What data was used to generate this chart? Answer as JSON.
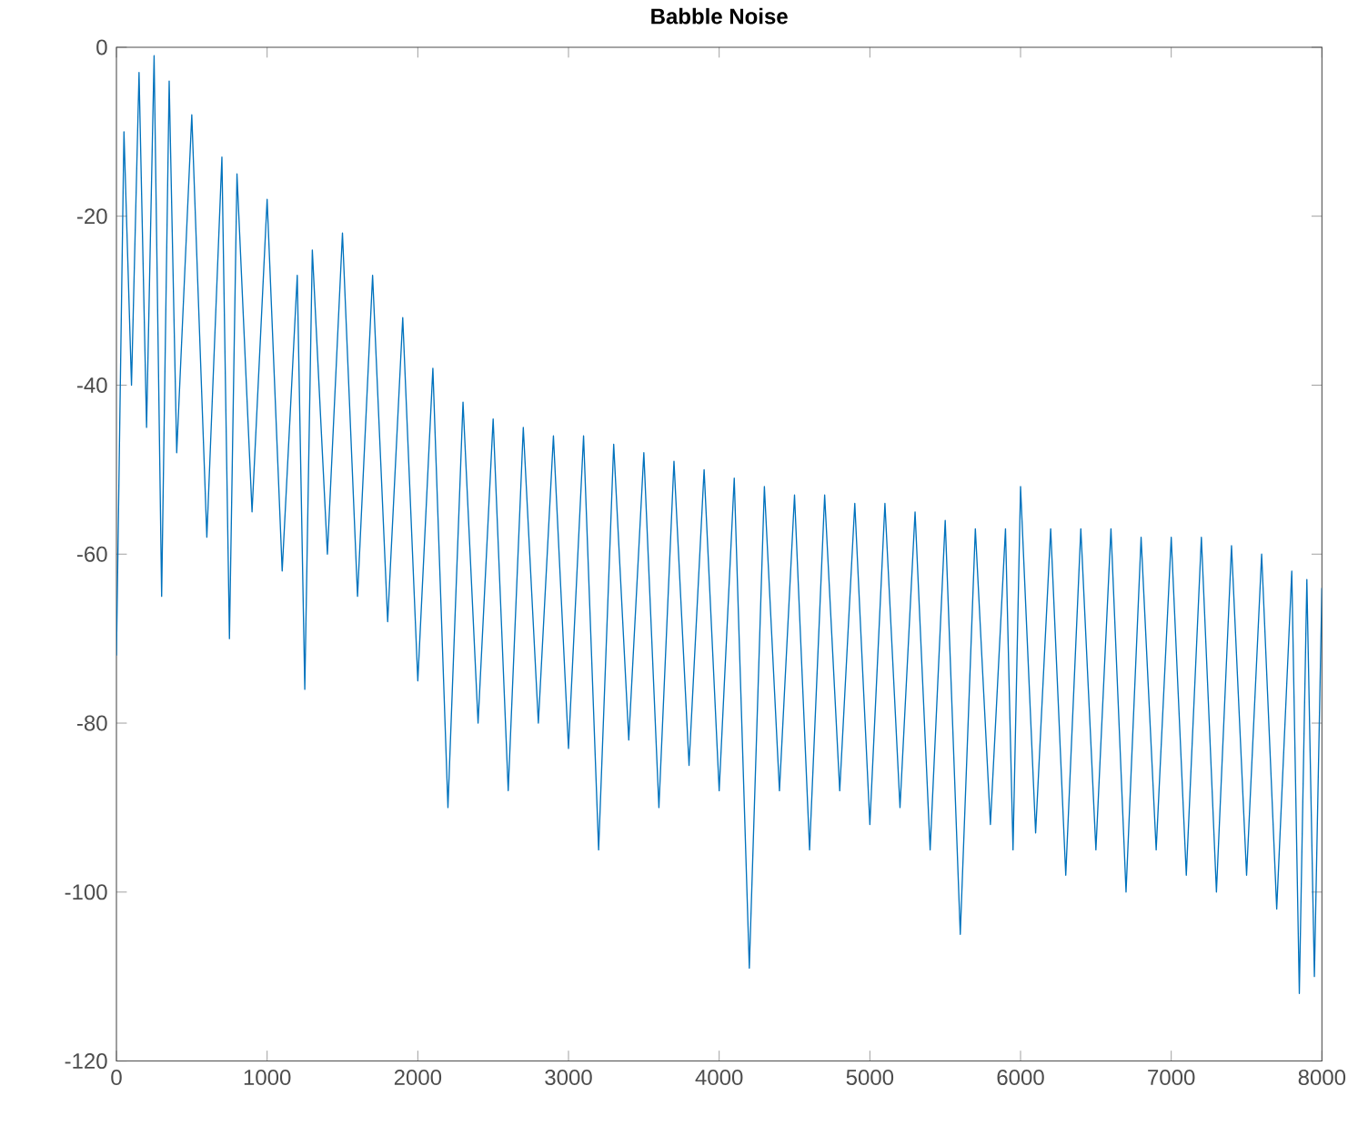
{
  "chart_data": {
    "type": "line",
    "title": "Babble Noise",
    "xlim": [
      0,
      8000
    ],
    "ylim": [
      -120,
      0
    ],
    "xticks": [
      0,
      1000,
      2000,
      3000,
      4000,
      5000,
      6000,
      7000,
      8000
    ],
    "yticks": [
      -120,
      -100,
      -80,
      -60,
      -40,
      -20,
      0
    ],
    "grid": false,
    "marker": "none",
    "line_style": "solid",
    "series": [
      {
        "color": "#0072bd",
        "x": [
          0,
          50,
          100,
          150,
          200,
          250,
          300,
          350,
          400,
          500,
          600,
          700,
          750,
          800,
          900,
          1000,
          1100,
          1200,
          1250,
          1300,
          1400,
          1500,
          1600,
          1700,
          1800,
          1900,
          2000,
          2100,
          2200,
          2300,
          2400,
          2500,
          2600,
          2700,
          2800,
          2900,
          3000,
          3100,
          3200,
          3300,
          3400,
          3500,
          3600,
          3700,
          3800,
          3900,
          4000,
          4100,
          4200,
          4300,
          4400,
          4500,
          4600,
          4700,
          4800,
          4900,
          5000,
          5100,
          5200,
          5300,
          5400,
          5500,
          5600,
          5700,
          5800,
          5900,
          5950,
          6000,
          6100,
          6200,
          6300,
          6400,
          6500,
          6600,
          6700,
          6800,
          6900,
          7000,
          7100,
          7200,
          7300,
          7400,
          7500,
          7600,
          7700,
          7800,
          7850,
          7900,
          7950,
          8000
        ],
        "values": [
          -72,
          -10,
          -40,
          -3,
          -45,
          -1,
          -65,
          -4,
          -48,
          -8,
          -58,
          -13,
          -70,
          -15,
          -55,
          -18,
          -62,
          -27,
          -76,
          -24,
          -60,
          -22,
          -65,
          -27,
          -68,
          -32,
          -75,
          -38,
          -90,
          -42,
          -80,
          -44,
          -88,
          -45,
          -80,
          -46,
          -83,
          -46,
          -95,
          -47,
          -82,
          -48,
          -90,
          -49,
          -85,
          -50,
          -88,
          -51,
          -109,
          -52,
          -88,
          -53,
          -95,
          -53,
          -88,
          -54,
          -92,
          -54,
          -90,
          -55,
          -95,
          -56,
          -105,
          -57,
          -92,
          -57,
          -95,
          -52,
          -93,
          -57,
          -98,
          -57,
          -95,
          -57,
          -100,
          -58,
          -95,
          -58,
          -98,
          -58,
          -100,
          -59,
          -98,
          -60,
          -102,
          -62,
          -112,
          -63,
          -110,
          -64
        ]
      }
    ]
  }
}
